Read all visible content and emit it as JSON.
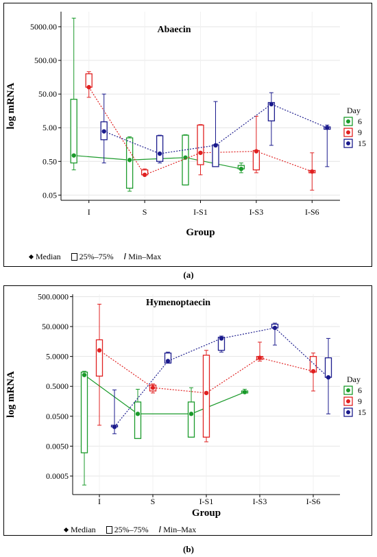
{
  "chart_data": [
    {
      "type": "box",
      "title": "Abaecin",
      "xlabel": "Group",
      "ylabel": "log mRNA",
      "scale": "log",
      "ylim": [
        0.035,
        14000
      ],
      "yticks": [
        0.05,
        0.5,
        5,
        50,
        500,
        5000
      ],
      "yticklabels": [
        "0.05",
        "0.50",
        "5.00",
        "50.00",
        "500.00",
        "5000.00"
      ],
      "categories": [
        "I",
        "S",
        "I-S1",
        "I-S3",
        "I-S6"
      ],
      "legend_title": "Day",
      "legend_position": "right",
      "series": [
        {
          "name": "6",
          "color": "#1a9a2a",
          "line": "solid",
          "boxes": [
            {
              "group": "I",
              "min": 0.28,
              "q1": 0.45,
              "median": 0.75,
              "q3": 35,
              "max": 9000
            },
            {
              "group": "S",
              "min": 0.065,
              "q1": 0.08,
              "median": 0.55,
              "q3": 2.5,
              "max": 2.7
            },
            {
              "group": "I-S1",
              "min": 0.1,
              "q1": 0.1,
              "median": 0.65,
              "q3": 3.0,
              "max": 3.1
            },
            {
              "group": "I-S3",
              "min": 0.23,
              "q1": 0.3,
              "median": 0.3,
              "q3": 0.38,
              "max": 0.45
            }
          ]
        },
        {
          "name": "9",
          "color": "#e02020",
          "line": "dotted",
          "boxes": [
            {
              "group": "I",
              "min": 40,
              "q1": 80,
              "median": 80,
              "q3": 200,
              "max": 230
            },
            {
              "group": "S",
              "min": 0.2,
              "q1": 0.2,
              "median": 0.2,
              "q3": 0.28,
              "max": 0.3
            },
            {
              "group": "I-S1",
              "min": 0.2,
              "q1": 0.4,
              "median": 0.9,
              "q3": 6.0,
              "max": 6.2
            },
            {
              "group": "I-S3",
              "min": 0.23,
              "q1": 0.28,
              "median": 1.0,
              "q3": 1.05,
              "max": 11
            },
            {
              "group": "I-S6",
              "min": 0.07,
              "q1": 0.23,
              "median": 0.25,
              "q3": 0.27,
              "max": 0.9
            }
          ]
        },
        {
          "name": "15",
          "color": "#1a1a8c",
          "line": "dotted",
          "boxes": [
            {
              "group": "I",
              "min": 0.45,
              "q1": 2.2,
              "median": 3.9,
              "q3": 7.5,
              "max": 50
            },
            {
              "group": "S",
              "min": 0.45,
              "q1": 0.5,
              "median": 0.85,
              "q3": 2.9,
              "max": 3.0
            },
            {
              "group": "I-S1",
              "min": 0.35,
              "q1": 0.35,
              "median": 1.5,
              "q3": 1.55,
              "max": 30
            },
            {
              "group": "I-S3",
              "min": 1.5,
              "q1": 8,
              "median": 25,
              "q3": 28,
              "max": 55
            },
            {
              "group": "I-S6",
              "min": 0.35,
              "q1": 4.5,
              "median": 5.0,
              "q3": 5.3,
              "max": 6.0
            }
          ]
        }
      ]
    },
    {
      "type": "box",
      "title": "Hymenoptaecin",
      "xlabel": "Group",
      "ylabel": "log mRNA",
      "scale": "log",
      "ylim": [
        0.00012,
        600
      ],
      "yticks": [
        0.0005,
        0.005,
        0.05,
        0.5,
        5,
        50,
        500
      ],
      "yticklabels": [
        "0.0005",
        "0.0050",
        "0.0500",
        "0.5000",
        "5.0000",
        "50.0000",
        "500.0000"
      ],
      "categories": [
        "I",
        "S",
        "I-S1",
        "I-S3",
        "I-S6"
      ],
      "legend_title": "Day",
      "legend_position": "right",
      "series": [
        {
          "name": "6",
          "color": "#1a9a2a",
          "line": "solid",
          "boxes": [
            {
              "group": "I",
              "min": 0.00025,
              "q1": 0.003,
              "median": 1.2,
              "q3": 1.5,
              "max": 1.6
            },
            {
              "group": "S",
              "min": 0.009,
              "q1": 0.009,
              "median": 0.06,
              "q3": 0.15,
              "max": 0.4
            },
            {
              "group": "I-S1",
              "min": 0.01,
              "q1": 0.01,
              "median": 0.06,
              "q3": 0.15,
              "max": 0.45
            },
            {
              "group": "I-S3",
              "min": 0.3,
              "q1": 0.3,
              "median": 0.32,
              "q3": 0.35,
              "max": 0.4
            }
          ]
        },
        {
          "name": "9",
          "color": "#e02020",
          "line": "dotted",
          "boxes": [
            {
              "group": "I",
              "min": 0.025,
              "q1": 1.1,
              "median": 8.0,
              "q3": 18,
              "max": 280
            },
            {
              "group": "S",
              "min": 0.3,
              "q1": 0.35,
              "median": 0.45,
              "q3": 0.55,
              "max": 0.6
            },
            {
              "group": "I-S1",
              "min": 0.007,
              "q1": 0.01,
              "median": 0.3,
              "q3": 5.5,
              "max": 8.0
            },
            {
              "group": "I-S3",
              "min": 3.5,
              "q1": 4.0,
              "median": 4.5,
              "q3": 5.0,
              "max": 15
            },
            {
              "group": "I-S6",
              "min": 0.35,
              "q1": 1.5,
              "median": 1.6,
              "q3": 5.0,
              "max": 6.5
            }
          ]
        },
        {
          "name": "15",
          "color": "#1a1a8c",
          "line": "dotted",
          "boxes": [
            {
              "group": "I",
              "min": 0.013,
              "q1": 0.022,
              "median": 0.022,
              "q3": 0.025,
              "max": 0.38
            },
            {
              "group": "S",
              "min": 3.0,
              "q1": 3.0,
              "median": 3.5,
              "q3": 6.5,
              "max": 7.0
            },
            {
              "group": "I-S1",
              "min": 7.0,
              "q1": 8.0,
              "median": 20,
              "q3": 22,
              "max": 24
            },
            {
              "group": "I-S3",
              "min": 12,
              "q1": 45,
              "median": 45,
              "q3": 60,
              "max": 65
            },
            {
              "group": "I-S6",
              "min": 0.06,
              "q1": 1.0,
              "median": 1.0,
              "q3": 4.5,
              "max": 20
            }
          ]
        }
      ]
    }
  ],
  "footer_legend": {
    "median": "Median",
    "box": "25%–75%",
    "whisker": "Min–Max"
  },
  "captions": [
    "(a)",
    "(b)"
  ]
}
